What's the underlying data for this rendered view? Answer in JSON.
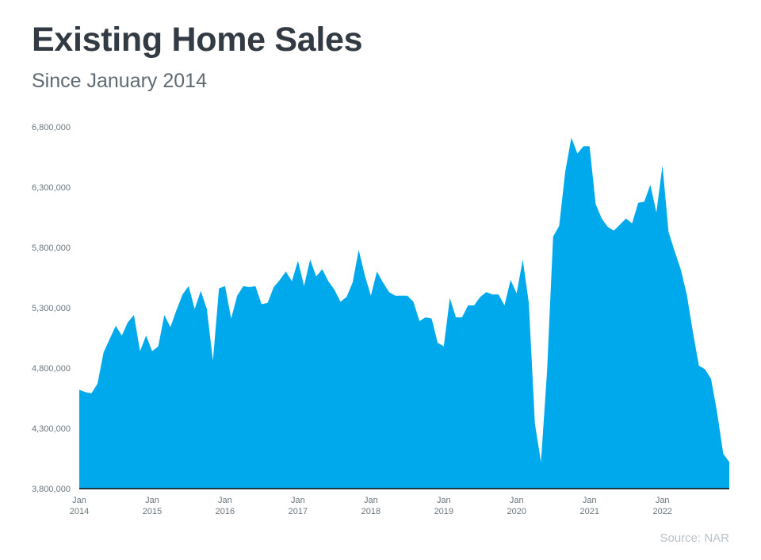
{
  "header": {
    "title": "Existing Home Sales",
    "subtitle": "Since January 2014"
  },
  "footer": {
    "source": "Source: NAR"
  },
  "colors": {
    "area": "#00a9ec",
    "baseline": "#1f3a44",
    "text": "#323b44",
    "muted": "#6b7780"
  },
  "chart_data": {
    "type": "area",
    "title": "Existing Home Sales",
    "subtitle": "Since January 2014",
    "xlabel": "",
    "ylabel": "",
    "x_start": "2014-01",
    "frequency": "monthly",
    "ylim": [
      3800000,
      6800000
    ],
    "yticks": [
      3800000,
      4300000,
      4800000,
      5300000,
      5800000,
      6300000,
      6800000
    ],
    "ytick_labels": [
      "3,800,000",
      "4,300,000",
      "4,800,000",
      "5,300,000",
      "5,800,000",
      "6,300,000",
      "6,800,000"
    ],
    "xtick_labels": [
      {
        "month": "Jan",
        "year": "2014"
      },
      {
        "month": "Jan",
        "year": "2015"
      },
      {
        "month": "Jan",
        "year": "2016"
      },
      {
        "month": "Jan",
        "year": "2017"
      },
      {
        "month": "Jan",
        "year": "2018"
      },
      {
        "month": "Jan",
        "year": "2019"
      },
      {
        "month": "Jan",
        "year": "2020"
      },
      {
        "month": "Jan",
        "year": "2021"
      },
      {
        "month": "Jan",
        "year": "2022"
      }
    ],
    "grid": false,
    "series": [
      {
        "values": [
          4620000,
          4600000,
          4590000,
          4670000,
          4930000,
          5040000,
          5150000,
          5070000,
          5180000,
          5240000,
          4940000,
          5070000,
          4940000,
          4980000,
          5240000,
          5140000,
          5280000,
          5410000,
          5480000,
          5290000,
          5440000,
          5290000,
          4860000,
          5460000,
          5480000,
          5210000,
          5400000,
          5480000,
          5470000,
          5480000,
          5330000,
          5340000,
          5470000,
          5530000,
          5600000,
          5520000,
          5690000,
          5480000,
          5700000,
          5560000,
          5620000,
          5520000,
          5450000,
          5350000,
          5390000,
          5510000,
          5780000,
          5570000,
          5400000,
          5600000,
          5510000,
          5430000,
          5400000,
          5400000,
          5400000,
          5350000,
          5190000,
          5220000,
          5210000,
          5010000,
          4980000,
          5380000,
          5220000,
          5220000,
          5320000,
          5320000,
          5390000,
          5430000,
          5410000,
          5410000,
          5320000,
          5530000,
          5420000,
          5700000,
          5340000,
          4340000,
          4020000,
          4770000,
          5890000,
          5980000,
          6430000,
          6710000,
          6580000,
          6640000,
          6640000,
          6160000,
          6040000,
          5970000,
          5940000,
          5990000,
          6040000,
          6000000,
          6170000,
          6180000,
          6320000,
          6090000,
          6480000,
          5930000,
          5770000,
          5620000,
          5410000,
          5100000,
          4820000,
          4790000,
          4710000,
          4430000,
          4090000,
          4020000
        ]
      }
    ]
  }
}
